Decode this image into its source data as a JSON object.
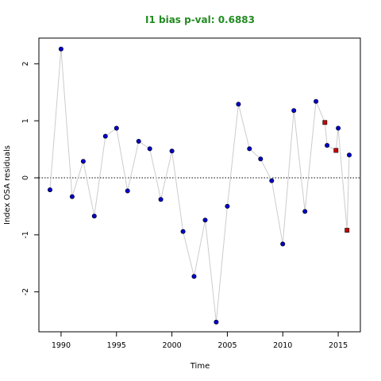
{
  "chart_data": {
    "type": "scatter",
    "title": "I1 bias p-val: 0.6883",
    "xlabel": "Time",
    "ylabel": "Index OSA residuals",
    "xlim": [
      1988,
      2017
    ],
    "ylim": [
      -2.7,
      2.45
    ],
    "xticks": [
      1990,
      1995,
      2000,
      2005,
      2010,
      2015
    ],
    "yticks": [
      -2,
      -1,
      0,
      1,
      2
    ],
    "reference_line": 0,
    "colors": {
      "title": "#228B22",
      "series_main": "#0000CC",
      "series_secondary": "#CC0000",
      "connector": "#CCCCCC"
    },
    "series": [
      {
        "marker": "circle",
        "x": [
          1989,
          1990,
          1991,
          1992,
          1993,
          1994,
          1995,
          1996,
          1997,
          1998,
          1999,
          2000,
          2001,
          2002,
          2003,
          2004,
          2005,
          2006,
          2007,
          2008,
          2009,
          2010,
          2011,
          2012,
          2013,
          2014,
          2015,
          2016
        ],
        "y": [
          -0.21,
          2.26,
          -0.33,
          0.29,
          -0.67,
          0.73,
          0.87,
          -0.23,
          0.64,
          0.51,
          -0.38,
          0.47,
          -0.94,
          -1.73,
          -0.74,
          -2.53,
          -0.5,
          1.29,
          0.51,
          0.33,
          -0.05,
          -1.16,
          1.18,
          -0.59,
          1.34,
          0.57,
          0.87,
          0.4
        ]
      },
      {
        "marker": "square",
        "x": [
          2013.8,
          2014.8,
          2015.8
        ],
        "y": [
          0.97,
          0.48,
          -0.92
        ]
      }
    ]
  }
}
